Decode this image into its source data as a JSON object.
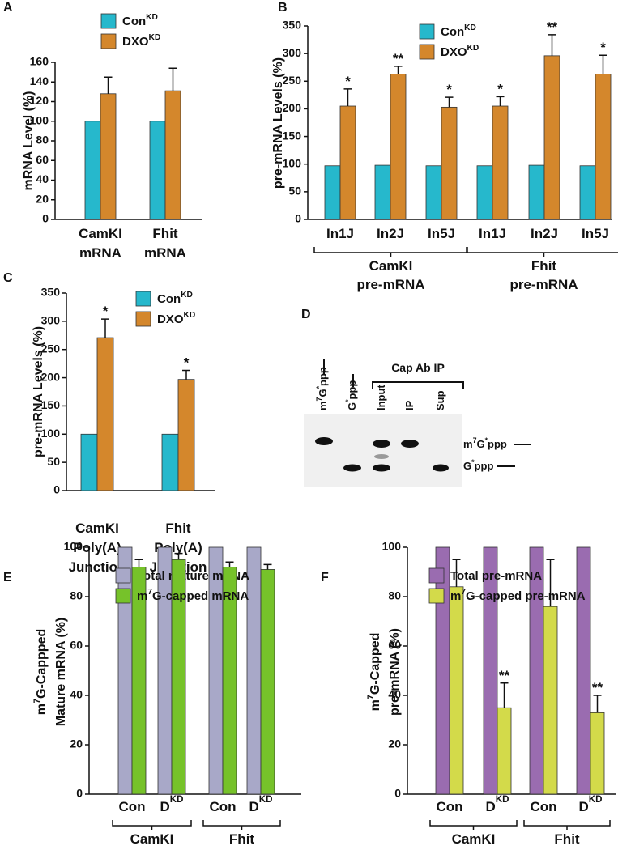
{
  "chart_data": [
    {
      "type": "bar",
      "panel": "A",
      "ylabel": "mRNA Level (%)",
      "categories": [
        "CamKI\nmRNA",
        "Fhit\nmRNA"
      ],
      "series": [
        {
          "name": [
            "Con",
            "KD"
          ],
          "color": "#26b8cc",
          "values": [
            100,
            100
          ]
        },
        {
          "name": [
            "DXO",
            "KD"
          ],
          "color": "#d4872c",
          "values": [
            128,
            131
          ],
          "errors": [
            17,
            23
          ]
        }
      ],
      "ylim": [
        0,
        160
      ],
      "yticks": [
        0,
        20,
        40,
        60,
        80,
        100,
        120,
        140,
        160
      ]
    },
    {
      "type": "bar",
      "panel": "B",
      "ylabel": "pre-mRNA Levels (%)",
      "categories": [
        "In1J",
        "In2J",
        "In5J",
        "In1J",
        "In2J",
        "In5J"
      ],
      "groups": [
        "CamKI\npre-mRNA",
        "Fhit\npre-mRNA"
      ],
      "series": [
        {
          "name": [
            "Con",
            "KD"
          ],
          "color": "#26b8cc",
          "values": [
            97,
            98,
            97,
            97,
            98,
            97
          ]
        },
        {
          "name": [
            "DXO",
            "KD"
          ],
          "color": "#d4872c",
          "values": [
            205,
            263,
            203,
            205,
            296,
            263
          ],
          "errors": [
            31,
            14,
            18,
            17,
            38,
            34
          ],
          "annotations": [
            "*",
            "**",
            "*",
            "*",
            "**",
            "*"
          ]
        }
      ],
      "ylim": [
        0,
        350
      ],
      "yticks": [
        0,
        50,
        100,
        150,
        200,
        250,
        300,
        350
      ]
    },
    {
      "type": "bar",
      "panel": "C",
      "ylabel": "pre-mRNA Levels (%)",
      "categories": [
        "CamKI\nPoly(A)\nJunction",
        "Fhit\nPoly(A)\nJunction"
      ],
      "series": [
        {
          "name": [
            "Con",
            "KD"
          ],
          "color": "#26b8cc",
          "values": [
            100,
            100
          ]
        },
        {
          "name": [
            "DXO",
            "KD"
          ],
          "color": "#d4872c",
          "values": [
            271,
            197
          ],
          "errors": [
            33,
            16
          ],
          "annotations": [
            "*",
            "*"
          ]
        }
      ],
      "ylim": [
        0,
        350
      ],
      "yticks": [
        0,
        50,
        100,
        150,
        200,
        250,
        300,
        350
      ]
    },
    {
      "type": "bar",
      "panel": "E",
      "ylabel": [
        "m",
        "7",
        "G-Cappped\nMature mRNA (%)"
      ],
      "categories": [
        "Con",
        [
          "D",
          "KD"
        ],
        "Con",
        [
          "D",
          "KD"
        ]
      ],
      "groups": [
        "CamKI",
        "Fhit"
      ],
      "series": [
        {
          "name": "Total mature mRNA",
          "color": "#a8a8c8",
          "values": [
            100,
            100,
            100,
            100
          ]
        },
        {
          "name": [
            "m",
            "7",
            "G-capped mRNA"
          ],
          "color": "#76c22a",
          "values": [
            92,
            95,
            92,
            91
          ],
          "errors": [
            3,
            2.5,
            2,
            2
          ]
        }
      ],
      "ylim": [
        0,
        100
      ],
      "yticks": [
        0,
        20,
        40,
        60,
        80,
        100
      ]
    },
    {
      "type": "bar",
      "panel": "F",
      "ylabel": [
        "m",
        "7",
        "G-Capped\npre-mRNA (%)"
      ],
      "categories": [
        "Con",
        [
          "D",
          "KD"
        ],
        "Con",
        [
          "D",
          "KD"
        ]
      ],
      "groups": [
        "CamKI",
        "Fhit"
      ],
      "series": [
        {
          "name": "Total pre-mRNA",
          "color": "#9a6cb0",
          "values": [
            100,
            100,
            100,
            100
          ]
        },
        {
          "name": [
            "m",
            "7",
            "G-capped pre-mRNA"
          ],
          "color": "#d3da4a",
          "values": [
            84,
            35,
            76,
            33
          ],
          "errors": [
            11,
            10,
            19,
            7
          ],
          "annotations": [
            null,
            "**",
            null,
            "**"
          ]
        }
      ],
      "ylim": [
        0,
        100
      ],
      "yticks": [
        0,
        20,
        40,
        60,
        80,
        100
      ]
    }
  ],
  "panel_d": {
    "panel": "D",
    "header": "Cap Ab IP",
    "lane_labels": [
      [
        "m",
        "7",
        "G",
        "*",
        "ppp"
      ],
      [
        "G",
        "*",
        "ppp"
      ],
      "Input",
      "IP",
      "Sup"
    ],
    "band_labels": [
      [
        "m",
        "7",
        "G",
        "*",
        "ppp"
      ],
      [
        "G",
        "*",
        "ppp"
      ]
    ]
  }
}
